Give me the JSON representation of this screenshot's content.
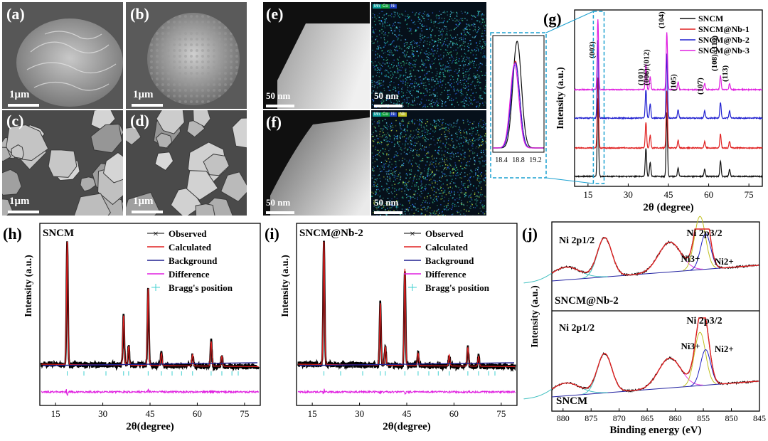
{
  "panels": {
    "a": {
      "label": "(a)",
      "scale": "1μm"
    },
    "b": {
      "label": "(b)",
      "scale": "1μm"
    },
    "c": {
      "label": "(c)",
      "scale": "1μm"
    },
    "d": {
      "label": "(d)",
      "scale": "1μm"
    },
    "e": {
      "label": "(e)",
      "scale": "50 nm",
      "map_scale": "50 nm",
      "tags": [
        "Mn",
        "Co",
        "Ni"
      ]
    },
    "f": {
      "label": "(f)",
      "scale": "50 nm",
      "map_scale": "50 nm",
      "tags": [
        "Mn",
        "Co",
        "Ni",
        "Nb"
      ]
    }
  },
  "colors": {
    "SNCM": "#111111",
    "SNCM@Nb-1": "#e02020",
    "SNCM@Nb-2": "#2020d0",
    "SNCM@Nb-3": "#e020e0",
    "bragg": "#40d0d0",
    "fit": "#e02020",
    "bg": "#202090",
    "diff": "#e020e0"
  },
  "chart_data": [
    {
      "panel": "(g)",
      "type": "line",
      "xlabel": "2θ (degree)",
      "ylabel": "Intensity (a.u.)",
      "xlim": [
        10,
        80
      ],
      "xticks": [
        "15",
        "30",
        "45",
        "60",
        "75"
      ],
      "legend": [
        "SNCM",
        "SNCM@Nb-1",
        "SNCM@Nb-2",
        "SNCM@Nb-3"
      ],
      "legend_position": "top-right",
      "peaks": [
        {
          "label": "(003)",
          "x": 18.7
        },
        {
          "label": "(101)",
          "x": 36.6
        },
        {
          "label": "(006)/(012)",
          "x": 38.2
        },
        {
          "label": "(104)",
          "x": 44.4
        },
        {
          "label": "(105)",
          "x": 48.6
        },
        {
          "label": "(107)",
          "x": 58.5
        },
        {
          "label": "(108)/(110)",
          "x": 64.4
        },
        {
          "label": "(113)",
          "x": 67.8
        }
      ],
      "inset": {
        "xlim": [
          18.2,
          19.4
        ],
        "xticks": [
          "18.4",
          "18.8",
          "19.2"
        ],
        "peak_x": 18.75
      }
    },
    {
      "panel": "(h)",
      "sample": "SNCM",
      "type": "line",
      "xlabel": "2θ(degree)",
      "ylabel": "Intensity (a.u.)",
      "xlim": [
        10,
        80
      ],
      "xticks": [
        "15",
        "30",
        "45",
        "60",
        "75"
      ],
      "legend": [
        "Observed",
        "Calculated",
        "Background",
        "Difference",
        "Bragg's position"
      ],
      "peaks_x": [
        18.7,
        36.6,
        38.2,
        44.4,
        48.6,
        58.5,
        64.4,
        67.8
      ],
      "peaks_h": [
        1.0,
        0.4,
        0.15,
        0.62,
        0.1,
        0.09,
        0.2,
        0.08
      ]
    },
    {
      "panel": "(i)",
      "sample": "SNCM@Nb-2",
      "type": "line",
      "xlabel": "2θ(degree)",
      "ylabel": "Intensity (a.u.)",
      "xlim": [
        10,
        80
      ],
      "xticks": [
        "15",
        "30",
        "45",
        "60",
        "75"
      ],
      "legend": [
        "Observed",
        "Calculated",
        "Background",
        "Difference",
        "Bragg's position"
      ],
      "peaks_x": [
        18.7,
        36.6,
        38.2,
        44.4,
        48.6,
        58.5,
        64.4,
        67.8
      ],
      "peaks_h": [
        1.0,
        0.5,
        0.15,
        0.78,
        0.1,
        0.09,
        0.15,
        0.08
      ]
    },
    {
      "panel": "(j)",
      "type": "line",
      "xlabel": "Binding energy (eV)",
      "ylabel": "Intensity (a.u.)",
      "xlim": [
        882,
        845
      ],
      "xticks": [
        "880",
        "875",
        "870",
        "865",
        "860",
        "855",
        "850",
        "845"
      ],
      "top": {
        "sample": "SNCM@Nb-2",
        "labels": [
          "Ni 2p1/2",
          "Ni 2p3/2",
          "Ni3+",
          "Ni2+"
        ]
      },
      "bottom": {
        "sample": "SNCM",
        "labels": [
          "Ni 2p1/2",
          "Ni 2p3/2",
          "Ni3+",
          "Ni2+"
        ]
      }
    }
  ]
}
